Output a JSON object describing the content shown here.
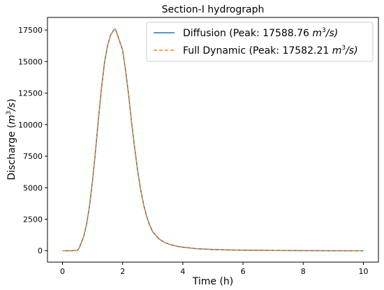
{
  "chart_data": {
    "type": "line",
    "title": "Section-I hydrograph",
    "xlabel": "Time (h)",
    "ylabel_main": "Discharge (",
    "ylabel_unit_m": "m",
    "ylabel_unit_sup": "3",
    "ylabel_unit_rest": "/s",
    "ylabel_close": ")",
    "xlim": [
      -0.5,
      10.5
    ],
    "ylim": [
      -900,
      18500
    ],
    "xticks": [
      0,
      2,
      4,
      6,
      8,
      10
    ],
    "yticks": [
      0,
      2500,
      5000,
      7500,
      10000,
      12500,
      15000,
      17500
    ],
    "grid": false,
    "legend_position": "top-right",
    "series": [
      {
        "name": "Diffusion",
        "legend_prefix": "Diffusion  (Peak: 17588.76 ",
        "style": "solid",
        "color": "#1f77b4",
        "x": [
          0,
          0.25,
          0.5,
          0.55,
          0.6,
          0.7,
          0.8,
          0.9,
          1.0,
          1.1,
          1.2,
          1.3,
          1.4,
          1.5,
          1.6,
          1.7,
          1.75,
          1.8,
          1.9,
          2.0,
          2.1,
          2.2,
          2.3,
          2.4,
          2.5,
          2.6,
          2.7,
          2.8,
          2.9,
          3.0,
          3.2,
          3.4,
          3.6,
          3.8,
          4.0,
          4.5,
          5.0,
          5.5,
          6.0,
          7.0,
          8.0,
          9.0,
          10.0
        ],
        "y": [
          0,
          0,
          30,
          200,
          500,
          1100,
          2100,
          3600,
          5600,
          8000,
          10600,
          13000,
          15000,
          16300,
          17100,
          17500,
          17588,
          17300,
          16600,
          15900,
          14200,
          12300,
          10100,
          8100,
          6300,
          4800,
          3600,
          2700,
          2000,
          1500,
          950,
          650,
          480,
          360,
          280,
          160,
          100,
          70,
          45,
          25,
          12,
          6,
          0
        ]
      },
      {
        "name": "Full Dynamic",
        "legend_prefix": "Full Dynamic (Peak: 17582.21 ",
        "style": "dashed",
        "color": "#ff7f0e",
        "x": [
          0,
          0.25,
          0.5,
          0.55,
          0.6,
          0.7,
          0.8,
          0.9,
          1.0,
          1.1,
          1.2,
          1.3,
          1.4,
          1.5,
          1.6,
          1.7,
          1.75,
          1.8,
          1.9,
          2.0,
          2.1,
          2.2,
          2.3,
          2.4,
          2.5,
          2.6,
          2.7,
          2.8,
          2.9,
          3.0,
          3.2,
          3.4,
          3.6,
          3.8,
          4.0,
          4.5,
          5.0,
          5.5,
          6.0,
          7.0,
          8.0,
          9.0,
          10.0
        ],
        "y": [
          0,
          0,
          30,
          200,
          500,
          1100,
          2100,
          3600,
          5600,
          8000,
          10600,
          13000,
          15000,
          16300,
          17100,
          17500,
          17582,
          17300,
          16600,
          15900,
          14200,
          12300,
          10100,
          8100,
          6300,
          4800,
          3600,
          2700,
          2000,
          1500,
          950,
          650,
          480,
          360,
          280,
          160,
          100,
          70,
          45,
          25,
          12,
          6,
          0
        ]
      }
    ],
    "legend_unit_m": "m",
    "legend_unit_sup": "3",
    "legend_unit_rest": "/s)"
  }
}
